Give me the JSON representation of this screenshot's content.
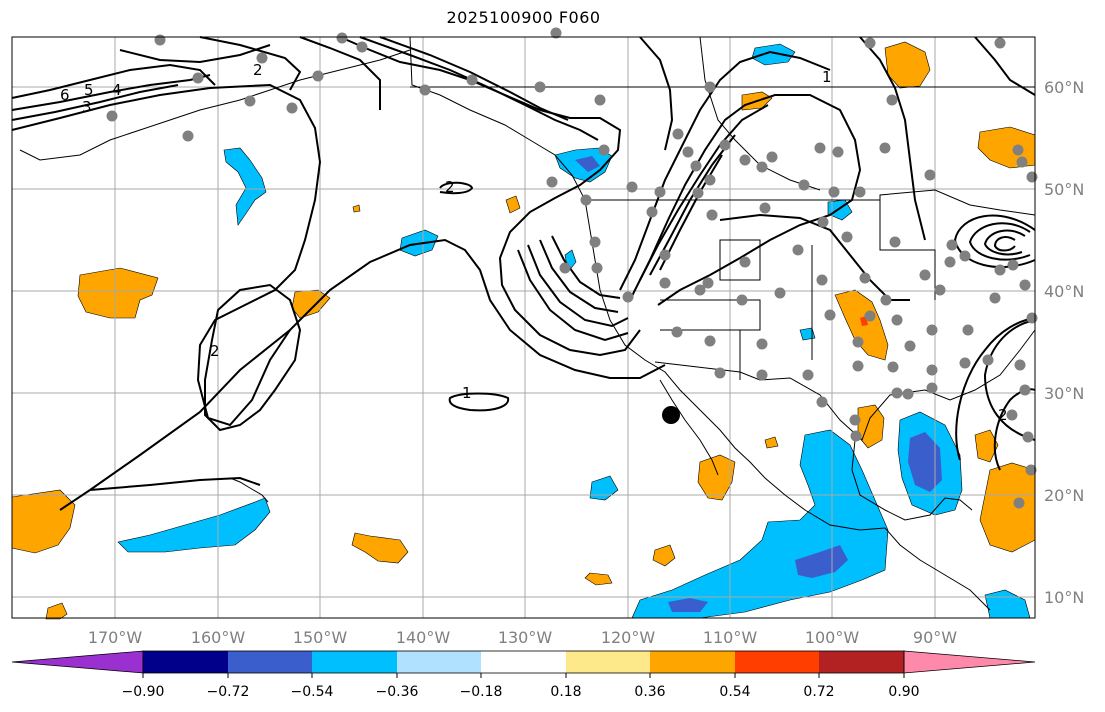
{
  "title": "2025100900 F060",
  "map": {
    "projection": "PlateCarree",
    "lon_range": [
      -180,
      -80
    ],
    "lat_range": [
      8,
      65
    ],
    "grid": true,
    "lon_labels": [
      "170°W",
      "160°W",
      "150°W",
      "140°W",
      "130°W",
      "120°W",
      "110°W",
      "100°W",
      "90°W"
    ],
    "lat_labels": [
      "60°N",
      "50°N",
      "40°N",
      "30°N",
      "20°N",
      "10°N"
    ],
    "contour_labels": [
      "6",
      "5",
      "4",
      "3",
      "2",
      "2",
      "2",
      "1",
      "1",
      "2"
    ],
    "marker": {
      "lon": -115.2,
      "lat": 28.0,
      "color": "#000000"
    },
    "station_color": "#808080"
  },
  "colorbar": {
    "tick_labels": [
      "−0.90",
      "−0.72",
      "−0.54",
      "−0.36",
      "−0.18",
      "0.18",
      "0.36",
      "0.54",
      "0.72",
      "0.90"
    ],
    "colors": [
      "#9b30d0",
      "#00008b",
      "#3a5fcd",
      "#00bfff",
      "#b0e2ff",
      "#ffffff",
      "#fde88a",
      "#ffa500",
      "#ff3e00",
      "#b22222",
      "#ff89aa"
    ],
    "extend": "both"
  }
}
